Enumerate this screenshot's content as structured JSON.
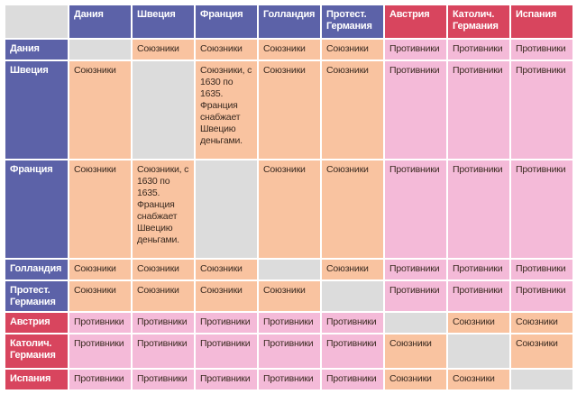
{
  "colors": {
    "protestant_header": "#5c62a8",
    "catholic_header": "#d8455e",
    "ally": "#f9c3a0",
    "enemy": "#f4bad8",
    "self": "#dcdcdc"
  },
  "columns": [
    "Дания",
    "Швеция",
    "Франция",
    "Голландия",
    "Протест. Германия",
    "Австрия",
    "Католич. Германия",
    "Испания"
  ],
  "column_side": [
    "p",
    "p",
    "p",
    "p",
    "p",
    "c",
    "c",
    "c"
  ],
  "rows": [
    {
      "label": "Дания",
      "side": "p",
      "cells": [
        "",
        "Союзники",
        "Союзники",
        "Союзники",
        "Союзники",
        "Противники",
        "Противники",
        "Противники"
      ]
    },
    {
      "label": "Швеция",
      "side": "p",
      "cells": [
        "Союзники",
        "",
        "Союзники, с 1630 по 1635. Франция снабжает Швецию деньгами.",
        "Союзники",
        "Союзники",
        "Противники",
        "Противники",
        "Противники"
      ]
    },
    {
      "label": "Франция",
      "side": "p",
      "cells": [
        "Союзники",
        "Союзники, с 1630 по 1635. Франция снабжает Швецию деньгами.",
        "",
        "Союзники",
        "Союзники",
        "Противники",
        "Противники",
        "Противники"
      ]
    },
    {
      "label": "Голландия",
      "side": "p",
      "cells": [
        "Союзники",
        "Союзники",
        "Союзники",
        "",
        "Союзники",
        "Противники",
        "Противники",
        "Противники"
      ]
    },
    {
      "label": "Протест. Германия",
      "side": "p",
      "cells": [
        "Союзники",
        "Союзники",
        "Союзники",
        "Союзники",
        "",
        "Противники",
        "Противники",
        "Противники"
      ]
    },
    {
      "label": "Австрия",
      "side": "c",
      "cells": [
        "Противники",
        "Противники",
        "Противники",
        "Противники",
        "Противники",
        "",
        "Союзники",
        "Союзники"
      ]
    },
    {
      "label": "Католич. Германия",
      "side": "c",
      "cells": [
        "Противники",
        "Противники",
        "Противники",
        "Противники",
        "Противники",
        "Союзники",
        "",
        "Союзники"
      ]
    },
    {
      "label": "Испания",
      "side": "c",
      "cells": [
        "Противники",
        "Противники",
        "Противники",
        "Противники",
        "Противники",
        "Союзники",
        "Союзники",
        ""
      ]
    }
  ]
}
